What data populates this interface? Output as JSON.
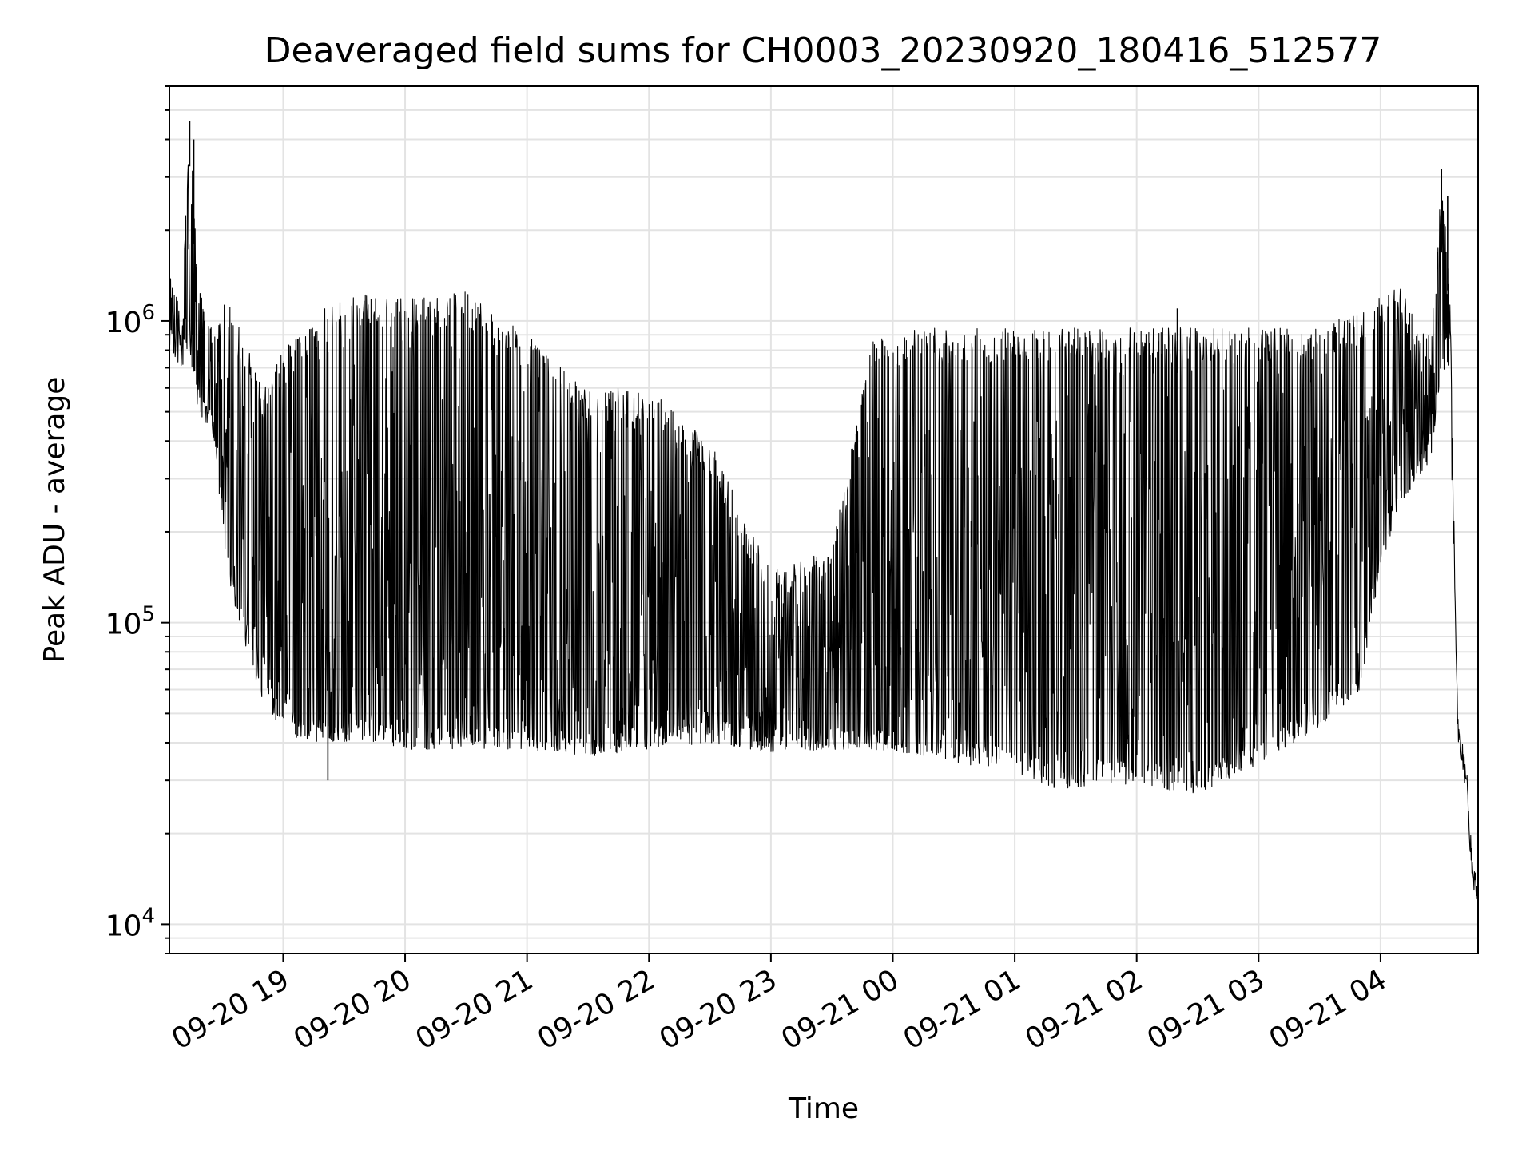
{
  "chart_data": {
    "type": "line",
    "title": "Deaveraged field sums for CH0003_20230920_180416_512577",
    "xlabel": "Time",
    "ylabel": "Peak ADU - average",
    "yscale": "log",
    "xlim": [
      "2023-09-20 18:04",
      "2023-09-21 04:48"
    ],
    "ylim": [
      8000,
      6000000
    ],
    "grid": true,
    "x_ticks": [
      "2023-09-20 19:00",
      "2023-09-20 20:00",
      "2023-09-20 21:00",
      "2023-09-20 22:00",
      "2023-09-20 23:00",
      "2023-09-21 00:00",
      "2023-09-21 01:00",
      "2023-09-21 02:00",
      "2023-09-21 03:00",
      "2023-09-21 04:00"
    ],
    "x_tick_labels": [
      "09-20 19",
      "09-20 20",
      "09-20 21",
      "09-20 22",
      "09-20 23",
      "09-21 00",
      "09-21 01",
      "09-21 02",
      "09-21 03",
      "09-21 04"
    ],
    "y_ticks": [
      10000,
      100000,
      1000000
    ],
    "y_tick_labels": [
      {
        "base": "10",
        "exp": "4"
      },
      {
        "base": "10",
        "exp": "5"
      },
      {
        "base": "10",
        "exp": "6"
      }
    ],
    "series": [
      {
        "color": "#000000",
        "envelope": [
          {
            "t": "2023-09-20 18:04",
            "low": 800000,
            "high": 1500000
          },
          {
            "t": "2023-09-20 18:10",
            "low": 700000,
            "high": 1100000
          },
          {
            "t": "2023-09-20 18:14",
            "low": 800000,
            "high": 4600000
          },
          {
            "t": "2023-09-20 18:18",
            "low": 500000,
            "high": 1400000
          },
          {
            "t": "2023-09-20 18:26",
            "low": 400000,
            "high": 1000000
          },
          {
            "t": "2023-09-20 18:32",
            "low": 150000,
            "high": 1200000
          },
          {
            "t": "2023-09-20 18:40",
            "low": 90000,
            "high": 900000
          },
          {
            "t": "2023-09-20 18:50",
            "low": 55000,
            "high": 600000
          },
          {
            "t": "2023-09-20 19:00",
            "low": 42000,
            "high": 800000
          },
          {
            "t": "2023-09-20 19:20",
            "low": 40000,
            "high": 1100000
          },
          {
            "t": "2023-09-20 19:40",
            "low": 40000,
            "high": 1250000
          },
          {
            "t": "2023-09-20 20:00",
            "low": 38000,
            "high": 1200000
          },
          {
            "t": "2023-09-20 20:30",
            "low": 38000,
            "high": 1250000
          },
          {
            "t": "2023-09-20 21:00",
            "low": 38000,
            "high": 900000
          },
          {
            "t": "2023-09-20 21:30",
            "low": 36000,
            "high": 600000
          },
          {
            "t": "2023-09-20 22:00",
            "low": 38000,
            "high": 600000
          },
          {
            "t": "2023-09-20 22:30",
            "low": 40000,
            "high": 400000
          },
          {
            "t": "2023-09-20 23:00",
            "low": 37000,
            "high": 150000
          },
          {
            "t": "2023-09-20 23:30",
            "low": 38000,
            "high": 180000
          },
          {
            "t": "2023-09-20 23:50",
            "low": 38000,
            "high": 900000
          },
          {
            "t": "2023-09-21 00:15",
            "low": 36000,
            "high": 950000
          },
          {
            "t": "2023-09-21 00:45",
            "low": 33000,
            "high": 950000
          },
          {
            "t": "2023-09-21 01:00",
            "low": 32000,
            "high": 950000
          },
          {
            "t": "2023-09-21 01:20",
            "low": 28000,
            "high": 950000
          },
          {
            "t": "2023-09-21 01:40",
            "low": 29000,
            "high": 950000
          },
          {
            "t": "2023-09-21 02:00",
            "low": 29000,
            "high": 950000
          },
          {
            "t": "2023-09-21 02:30",
            "low": 27000,
            "high": 950000
          },
          {
            "t": "2023-09-21 03:00",
            "low": 34000,
            "high": 950000
          },
          {
            "t": "2023-09-21 03:30",
            "low": 45000,
            "high": 950000
          },
          {
            "t": "2023-09-21 03:50",
            "low": 60000,
            "high": 1100000
          },
          {
            "t": "2023-09-21 04:00",
            "low": 150000,
            "high": 1300000
          },
          {
            "t": "2023-09-21 04:10",
            "low": 250000,
            "high": 1300000
          },
          {
            "t": "2023-09-21 04:25",
            "low": 350000,
            "high": 900000
          },
          {
            "t": "2023-09-21 04:30",
            "low": 700000,
            "high": 3000000
          },
          {
            "t": "2023-09-21 04:34",
            "low": 600000,
            "high": 1500000
          },
          {
            "t": "2023-09-21 04:38",
            "low": 40000,
            "high": 50000
          },
          {
            "t": "2023-09-21 04:42",
            "low": 30000,
            "high": 35000
          },
          {
            "t": "2023-09-21 04:45",
            "low": 14000,
            "high": 18000
          },
          {
            "t": "2023-09-21 04:48",
            "low": 11000,
            "high": 14000
          }
        ],
        "spikes": [
          {
            "t": "2023-09-20 18:14",
            "y": 4600000
          },
          {
            "t": "2023-09-20 18:16",
            "y": 4000000
          },
          {
            "t": "2023-09-20 19:22",
            "y": 30000
          },
          {
            "t": "2023-09-21 02:20",
            "y": 1100000
          },
          {
            "t": "2023-09-21 04:30",
            "y": 3200000
          },
          {
            "t": "2023-09-21 04:33",
            "y": 2600000
          }
        ]
      }
    ]
  }
}
